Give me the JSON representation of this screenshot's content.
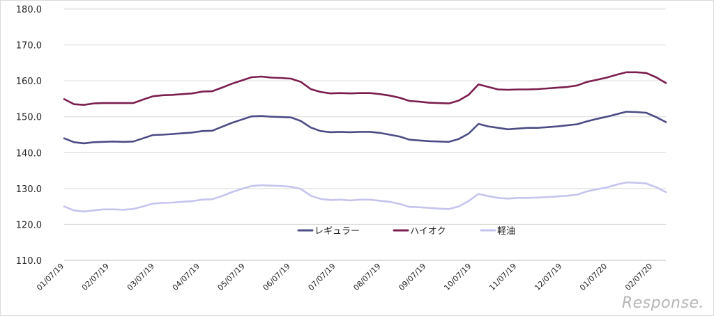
{
  "chart_data": {
    "type": "line",
    "title": "",
    "xlabel": "",
    "ylabel": "",
    "ylim": [
      110,
      180
    ],
    "yticks": [
      "110.0",
      "120.0",
      "130.0",
      "140.0",
      "150.0",
      "160.0",
      "170.0",
      "180.0"
    ],
    "x_tick_labels": [
      "01/07/19",
      "02/07/19",
      "03/07/19",
      "04/07/19",
      "05/07/19",
      "06/07/19",
      "07/07/19",
      "08/07/19",
      "09/07/19",
      "10/07/19",
      "11/07/19",
      "12/07/19",
      "01/07/20",
      "02/07/20"
    ],
    "grid": true,
    "legend_placement": "lower-center",
    "series": [
      {
        "name": "レギュラー",
        "color": "#4b4c85",
        "values": [
          144.0,
          142.9,
          142.6,
          142.9,
          143.0,
          143.1,
          143.0,
          143.1,
          144.0,
          144.9,
          145.0,
          145.2,
          145.4,
          145.6,
          146.0,
          146.1,
          147.2,
          148.3,
          149.2,
          150.1,
          150.2,
          150.0,
          149.9,
          149.8,
          148.8,
          147.0,
          146.0,
          145.7,
          145.8,
          145.7,
          145.8,
          145.8,
          145.5,
          145.0,
          144.5,
          143.6,
          143.4,
          143.2,
          143.1,
          143.0,
          143.8,
          145.3,
          148.0,
          147.3,
          146.9,
          146.5,
          146.7,
          146.9,
          146.9,
          147.1,
          147.3,
          147.6,
          147.9,
          148.7,
          149.4,
          150.0,
          150.7,
          151.4,
          151.3,
          151.1,
          149.9,
          148.5
        ]
      },
      {
        "name": "ハイオク",
        "color": "#7b1d4e",
        "values": [
          154.9,
          153.5,
          153.3,
          153.7,
          153.8,
          153.8,
          153.8,
          153.8,
          154.8,
          155.7,
          156.0,
          156.1,
          156.3,
          156.5,
          157.0,
          157.1,
          158.1,
          159.2,
          160.1,
          161.0,
          161.2,
          160.9,
          160.8,
          160.6,
          159.7,
          157.7,
          156.9,
          156.5,
          156.6,
          156.5,
          156.6,
          156.6,
          156.3,
          155.9,
          155.3,
          154.4,
          154.2,
          153.9,
          153.8,
          153.7,
          154.5,
          156.1,
          159.0,
          158.3,
          157.6,
          157.5,
          157.6,
          157.6,
          157.7,
          157.9,
          158.1,
          158.3,
          158.7,
          159.7,
          160.3,
          160.9,
          161.7,
          162.4,
          162.4,
          162.2,
          161.0,
          159.4
        ]
      },
      {
        "name": "軽油",
        "color": "#c5c4ee",
        "values": [
          125.0,
          123.9,
          123.6,
          123.9,
          124.2,
          124.2,
          124.1,
          124.3,
          125.0,
          125.8,
          126.0,
          126.1,
          126.3,
          126.5,
          126.9,
          127.0,
          127.9,
          129.0,
          129.9,
          130.7,
          130.9,
          130.8,
          130.7,
          130.5,
          129.9,
          128.0,
          127.1,
          126.8,
          126.9,
          126.7,
          126.9,
          126.9,
          126.6,
          126.3,
          125.7,
          124.9,
          124.8,
          124.6,
          124.4,
          124.3,
          125.0,
          126.5,
          128.5,
          127.9,
          127.4,
          127.2,
          127.4,
          127.4,
          127.5,
          127.6,
          127.8,
          128.0,
          128.3,
          129.2,
          129.8,
          130.3,
          131.1,
          131.7,
          131.6,
          131.4,
          130.4,
          129.0
        ]
      }
    ]
  },
  "watermark": "Response."
}
